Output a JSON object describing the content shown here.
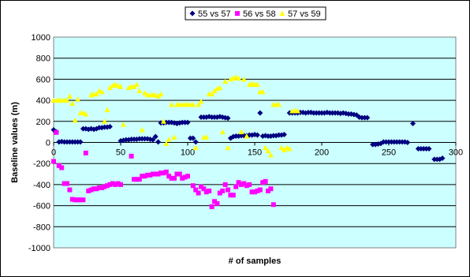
{
  "chart_data": {
    "type": "scatter",
    "title": "",
    "xlabel": "# of samples",
    "ylabel": "Baseline values (m)",
    "xlim": [
      0,
      300
    ],
    "ylim": [
      -1000,
      1000
    ],
    "xticks": [
      0,
      50,
      100,
      150,
      200,
      250,
      300
    ],
    "yticks": [
      -1000,
      -800,
      -600,
      -400,
      -200,
      0,
      200,
      400,
      600,
      800,
      1000
    ],
    "grid": "horizontal",
    "legend_position": "top-center",
    "plot_background": "#ccffff",
    "series": [
      {
        "name": "55 vs 57",
        "color": "#000080",
        "marker": "diamond",
        "points": [
          [
            0,
            120
          ],
          [
            2,
            100
          ],
          [
            4,
            5
          ],
          [
            6,
            8
          ],
          [
            8,
            5
          ],
          [
            10,
            5
          ],
          [
            12,
            5
          ],
          [
            14,
            5
          ],
          [
            16,
            5
          ],
          [
            18,
            5
          ],
          [
            20,
            5
          ],
          [
            22,
            130
          ],
          [
            24,
            130
          ],
          [
            26,
            125
          ],
          [
            28,
            130
          ],
          [
            30,
            125
          ],
          [
            32,
            130
          ],
          [
            34,
            140
          ],
          [
            36,
            140
          ],
          [
            38,
            145
          ],
          [
            40,
            145
          ],
          [
            42,
            150
          ],
          [
            50,
            15
          ],
          [
            52,
            20
          ],
          [
            54,
            25
          ],
          [
            56,
            25
          ],
          [
            58,
            30
          ],
          [
            60,
            30
          ],
          [
            62,
            30
          ],
          [
            64,
            35
          ],
          [
            66,
            35
          ],
          [
            68,
            35
          ],
          [
            70,
            35
          ],
          [
            72,
            30
          ],
          [
            74,
            25
          ],
          [
            76,
            55
          ],
          [
            78,
            5
          ],
          [
            80,
            185
          ],
          [
            82,
            185
          ],
          [
            84,
            190
          ],
          [
            86,
            190
          ],
          [
            88,
            190
          ],
          [
            90,
            185
          ],
          [
            92,
            180
          ],
          [
            94,
            185
          ],
          [
            96,
            190
          ],
          [
            98,
            190
          ],
          [
            100,
            190
          ],
          [
            102,
            40
          ],
          [
            104,
            40
          ],
          [
            106,
            5
          ],
          [
            110,
            240
          ],
          [
            112,
            240
          ],
          [
            114,
            240
          ],
          [
            116,
            245
          ],
          [
            118,
            240
          ],
          [
            120,
            240
          ],
          [
            122,
            240
          ],
          [
            124,
            245
          ],
          [
            126,
            240
          ],
          [
            128,
            235
          ],
          [
            130,
            230
          ],
          [
            132,
            40
          ],
          [
            134,
            55
          ],
          [
            136,
            60
          ],
          [
            138,
            60
          ],
          [
            140,
            65
          ],
          [
            142,
            65
          ],
          [
            144,
            65
          ],
          [
            146,
            70
          ],
          [
            148,
            70
          ],
          [
            150,
            75
          ],
          [
            152,
            70
          ],
          [
            154,
            280
          ],
          [
            156,
            60
          ],
          [
            158,
            65
          ],
          [
            160,
            60
          ],
          [
            162,
            60
          ],
          [
            164,
            65
          ],
          [
            166,
            65
          ],
          [
            168,
            70
          ],
          [
            170,
            70
          ],
          [
            172,
            75
          ],
          [
            176,
            280
          ],
          [
            178,
            280
          ],
          [
            180,
            280
          ],
          [
            182,
            280
          ],
          [
            184,
            285
          ],
          [
            186,
            285
          ],
          [
            188,
            280
          ],
          [
            190,
            285
          ],
          [
            192,
            285
          ],
          [
            194,
            280
          ],
          [
            196,
            280
          ],
          [
            198,
            280
          ],
          [
            200,
            280
          ],
          [
            202,
            280
          ],
          [
            204,
            285
          ],
          [
            206,
            280
          ],
          [
            208,
            280
          ],
          [
            210,
            280
          ],
          [
            212,
            280
          ],
          [
            214,
            275
          ],
          [
            216,
            280
          ],
          [
            218,
            275
          ],
          [
            220,
            270
          ],
          [
            222,
            270
          ],
          [
            224,
            265
          ],
          [
            226,
            260
          ],
          [
            228,
            240
          ],
          [
            230,
            235
          ],
          [
            232,
            235
          ],
          [
            234,
            235
          ],
          [
            238,
            -20
          ],
          [
            240,
            -20
          ],
          [
            242,
            -15
          ],
          [
            244,
            -10
          ],
          [
            246,
            5
          ],
          [
            248,
            5
          ],
          [
            250,
            5
          ],
          [
            252,
            5
          ],
          [
            254,
            5
          ],
          [
            256,
            5
          ],
          [
            258,
            5
          ],
          [
            260,
            5
          ],
          [
            262,
            5
          ],
          [
            264,
            0
          ],
          [
            268,
            180
          ],
          [
            272,
            -60
          ],
          [
            274,
            -60
          ],
          [
            276,
            -60
          ],
          [
            278,
            -60
          ],
          [
            280,
            -60
          ],
          [
            284,
            -160
          ],
          [
            286,
            -160
          ],
          [
            288,
            -160
          ],
          [
            290,
            -150
          ]
        ]
      },
      {
        "name": "56 vs 58",
        "color": "#ff00ff",
        "marker": "square",
        "points": [
          [
            0,
            -180
          ],
          [
            2,
            95
          ],
          [
            4,
            -220
          ],
          [
            6,
            -240
          ],
          [
            8,
            -390
          ],
          [
            10,
            -390
          ],
          [
            12,
            -450
          ],
          [
            14,
            -540
          ],
          [
            16,
            -545
          ],
          [
            18,
            -545
          ],
          [
            20,
            -545
          ],
          [
            22,
            -545
          ],
          [
            24,
            -100
          ],
          [
            26,
            -460
          ],
          [
            28,
            -450
          ],
          [
            30,
            -440
          ],
          [
            32,
            -440
          ],
          [
            34,
            -430
          ],
          [
            36,
            -430
          ],
          [
            38,
            -420
          ],
          [
            40,
            -410
          ],
          [
            42,
            -400
          ],
          [
            44,
            -390
          ],
          [
            46,
            -400
          ],
          [
            48,
            -390
          ],
          [
            50,
            -400
          ],
          [
            58,
            -130
          ],
          [
            60,
            -350
          ],
          [
            62,
            -350
          ],
          [
            64,
            -350
          ],
          [
            66,
            -320
          ],
          [
            68,
            -320
          ],
          [
            70,
            -310
          ],
          [
            72,
            -310
          ],
          [
            74,
            -300
          ],
          [
            76,
            -300
          ],
          [
            78,
            -300
          ],
          [
            80,
            -290
          ],
          [
            82,
            -290
          ],
          [
            84,
            -280
          ],
          [
            86,
            -320
          ],
          [
            88,
            -340
          ],
          [
            90,
            -340
          ],
          [
            92,
            -300
          ],
          [
            94,
            -300
          ],
          [
            96,
            -340
          ],
          [
            98,
            -330
          ],
          [
            100,
            -320
          ],
          [
            104,
            -410
          ],
          [
            106,
            -450
          ],
          [
            108,
            -480
          ],
          [
            110,
            -420
          ],
          [
            112,
            -440
          ],
          [
            114,
            -470
          ],
          [
            116,
            -460
          ],
          [
            118,
            -610
          ],
          [
            120,
            -560
          ],
          [
            122,
            -580
          ],
          [
            124,
            -480
          ],
          [
            126,
            -460
          ],
          [
            128,
            -400
          ],
          [
            130,
            -450
          ],
          [
            132,
            -500
          ],
          [
            134,
            -500
          ],
          [
            136,
            -420
          ],
          [
            138,
            -380
          ],
          [
            140,
            -400
          ],
          [
            142,
            -390
          ],
          [
            144,
            -410
          ],
          [
            146,
            -400
          ],
          [
            148,
            -470
          ],
          [
            150,
            -470
          ],
          [
            152,
            -460
          ],
          [
            154,
            -450
          ],
          [
            156,
            -380
          ],
          [
            158,
            -370
          ],
          [
            160,
            -460
          ],
          [
            162,
            -440
          ],
          [
            164,
            -590
          ]
        ]
      },
      {
        "name": "57 vs 59",
        "color": "#ffff00",
        "marker": "triangle",
        "points": [
          [
            0,
            400
          ],
          [
            2,
            400
          ],
          [
            4,
            400
          ],
          [
            6,
            400
          ],
          [
            8,
            400
          ],
          [
            10,
            400
          ],
          [
            12,
            440
          ],
          [
            14,
            370
          ],
          [
            16,
            210
          ],
          [
            18,
            410
          ],
          [
            20,
            280
          ],
          [
            22,
            280
          ],
          [
            24,
            270
          ],
          [
            28,
            450
          ],
          [
            30,
            460
          ],
          [
            32,
            460
          ],
          [
            34,
            490
          ],
          [
            36,
            480
          ],
          [
            38,
            200
          ],
          [
            40,
            310
          ],
          [
            42,
            520
          ],
          [
            44,
            540
          ],
          [
            46,
            550
          ],
          [
            48,
            540
          ],
          [
            50,
            530
          ],
          [
            52,
            170
          ],
          [
            56,
            520
          ],
          [
            58,
            530
          ],
          [
            60,
            530
          ],
          [
            62,
            550
          ],
          [
            64,
            490
          ],
          [
            66,
            120
          ],
          [
            68,
            470
          ],
          [
            70,
            450
          ],
          [
            72,
            450
          ],
          [
            74,
            450
          ],
          [
            76,
            450
          ],
          [
            78,
            440
          ],
          [
            80,
            460
          ],
          [
            82,
            200
          ],
          [
            84,
            -10
          ],
          [
            86,
            30
          ],
          [
            88,
            360
          ],
          [
            90,
            50
          ],
          [
            92,
            360
          ],
          [
            94,
            360
          ],
          [
            96,
            360
          ],
          [
            98,
            360
          ],
          [
            100,
            360
          ],
          [
            102,
            360
          ],
          [
            104,
            360
          ],
          [
            106,
            -50
          ],
          [
            108,
            360
          ],
          [
            110,
            390
          ],
          [
            112,
            50
          ],
          [
            114,
            50
          ],
          [
            116,
            460
          ],
          [
            118,
            460
          ],
          [
            120,
            490
          ],
          [
            122,
            510
          ],
          [
            124,
            520
          ],
          [
            126,
            100
          ],
          [
            128,
            580
          ],
          [
            130,
            -50
          ],
          [
            132,
            600
          ],
          [
            134,
            610
          ],
          [
            136,
            620
          ],
          [
            138,
            610
          ],
          [
            140,
            100
          ],
          [
            142,
            600
          ],
          [
            144,
            60
          ],
          [
            146,
            550
          ],
          [
            148,
            560
          ],
          [
            150,
            550
          ],
          [
            152,
            550
          ],
          [
            154,
            480
          ],
          [
            156,
            480
          ],
          [
            158,
            -50
          ],
          [
            160,
            -80
          ],
          [
            162,
            -120
          ],
          [
            164,
            360
          ],
          [
            166,
            360
          ],
          [
            168,
            360
          ],
          [
            170,
            -50
          ],
          [
            172,
            -70
          ],
          [
            174,
            -50
          ],
          [
            176,
            -60
          ],
          [
            178,
            300
          ],
          [
            180,
            300
          ],
          [
            182,
            300
          ]
        ]
      }
    ]
  }
}
